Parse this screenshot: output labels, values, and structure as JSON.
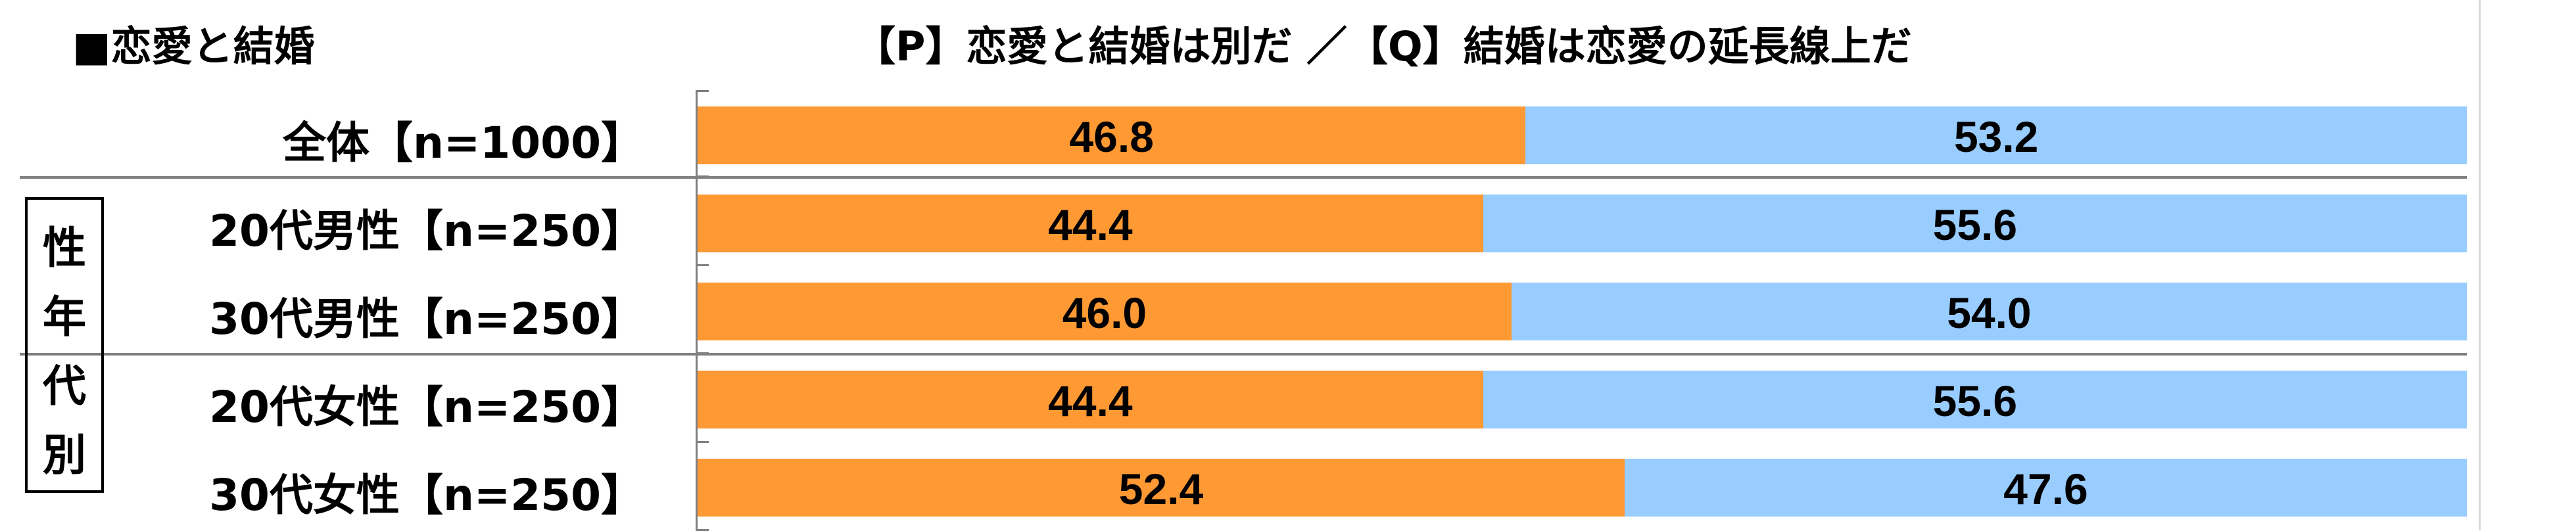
{
  "title_left": "■恋愛と結婚",
  "title_main": "【P】恋愛と結婚は別だ ／【Q】結婚は恋愛の延長線上だ",
  "group_label": "性年代別",
  "colors": {
    "p": "#ff9933",
    "q": "#99ccff",
    "axis": "#808080"
  },
  "chart_data": {
    "type": "bar",
    "stacked": true,
    "orientation": "horizontal",
    "xlim": [
      0,
      100
    ],
    "categories": [
      "全体【n=1000】",
      "20代男性【n=250】",
      "30代男性【n=250】",
      "20代女性【n=250】",
      "30代女性【n=250】"
    ],
    "series": [
      {
        "name": "【P】恋愛と結婚は別だ",
        "values": [
          46.8,
          44.4,
          46.0,
          44.4,
          52.4
        ]
      },
      {
        "name": "【Q】結婚は恋愛の延長線上だ",
        "values": [
          53.2,
          55.6,
          54.0,
          55.6,
          47.6
        ]
      }
    ],
    "value_labels": [
      [
        "46.8",
        "53.2"
      ],
      [
        "44.4",
        "55.6"
      ],
      [
        "46.0",
        "54.0"
      ],
      [
        "44.4",
        "55.6"
      ],
      [
        "52.4",
        "47.6"
      ]
    ]
  }
}
